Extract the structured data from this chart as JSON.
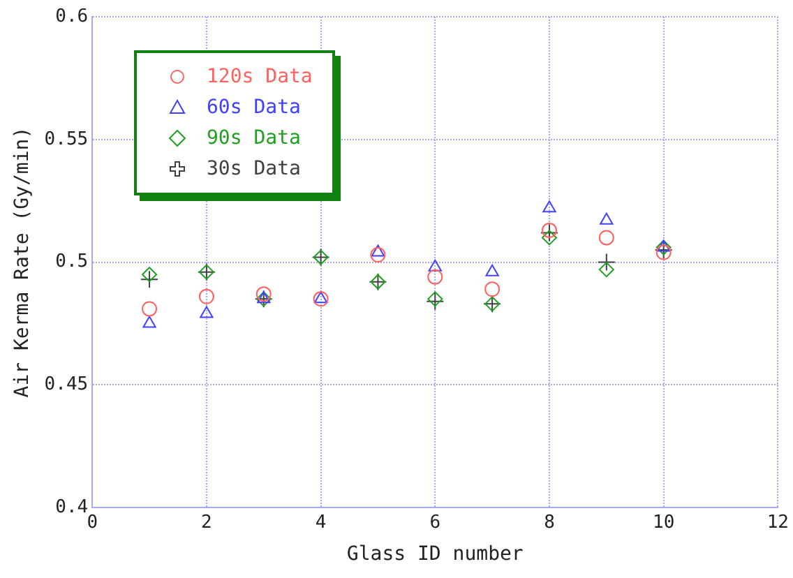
{
  "chart_data": {
    "type": "scatter",
    "xlabel": "Glass ID number",
    "ylabel": "Air Kerma Rate (Gy/min)",
    "x": [
      1,
      2,
      3,
      4,
      5,
      6,
      7,
      8,
      9,
      10
    ],
    "series": [
      {
        "name": "120s Data",
        "color": "#ff6060",
        "marker": "circle",
        "values": [
          0.481,
          0.486,
          0.487,
          0.485,
          0.503,
          0.494,
          0.489,
          0.513,
          0.51,
          0.504
        ]
      },
      {
        "name": "60s Data",
        "color": "#4040ff",
        "marker": "triangle",
        "values": [
          0.475,
          0.479,
          0.485,
          0.485,
          0.504,
          0.498,
          0.496,
          0.522,
          0.517,
          0.506
        ]
      },
      {
        "name": "90s Data",
        "color": "#20a020",
        "marker": "diamond",
        "values": [
          0.495,
          0.496,
          0.485,
          0.502,
          0.492,
          0.485,
          0.483,
          0.51,
          0.497,
          0.506
        ]
      },
      {
        "name": "30s Data",
        "color": "#404040",
        "marker": "cross",
        "values": [
          0.493,
          0.496,
          0.485,
          0.502,
          0.492,
          0.484,
          0.483,
          0.512,
          0.5,
          0.505
        ]
      }
    ],
    "xlim": [
      0,
      12
    ],
    "xticks": [
      0,
      2,
      4,
      6,
      8,
      10,
      12
    ],
    "ylim": [
      0.4,
      0.6
    ],
    "yticks": [
      0.4,
      0.45,
      0.5,
      0.55,
      0.6
    ],
    "grid": true,
    "legend": "top left"
  }
}
